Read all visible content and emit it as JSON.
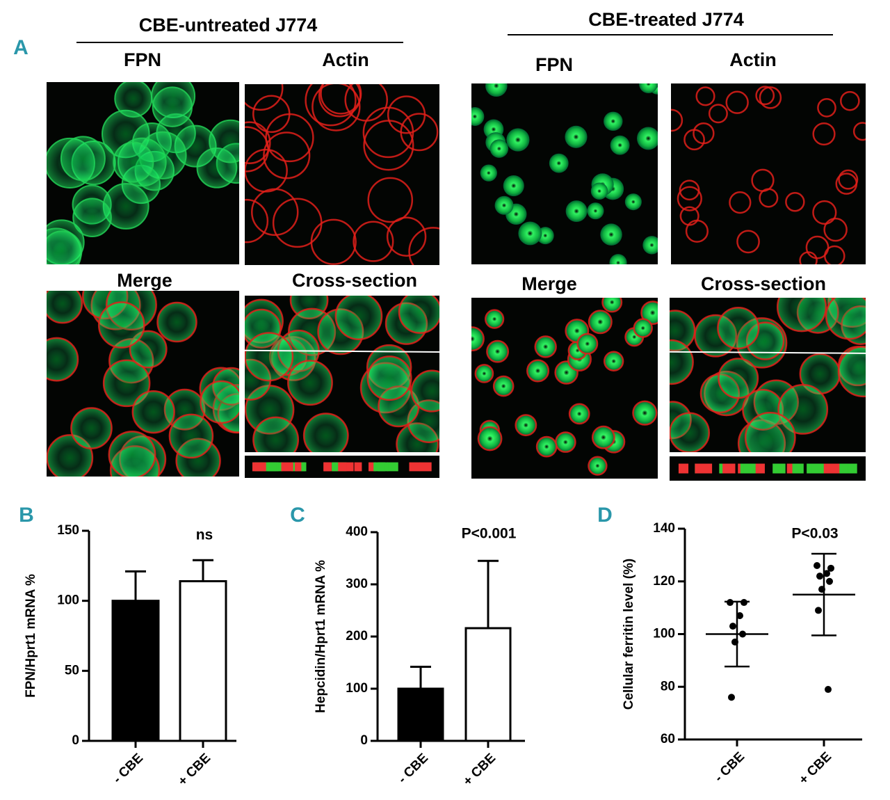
{
  "figure": {
    "panel_a": {
      "label": "A",
      "groups": [
        {
          "title": "CBE-untreated J774",
          "images": [
            "FPN",
            "Actin",
            "Merge",
            "Cross-section"
          ]
        },
        {
          "title": "CBE-treated J774",
          "images": [
            "FPN",
            "Actin",
            "Merge",
            "Cross-section"
          ]
        }
      ]
    }
  },
  "chart_data": [
    {
      "type": "bar",
      "label": "B",
      "ylabel": "FPN/Hprt1 mRNA %",
      "annotation": "ns",
      "categories": [
        "- CBE",
        "+ CBE"
      ],
      "values": [
        100,
        114
      ],
      "errors": [
        21,
        15
      ],
      "colors": [
        "#000000",
        "#ffffff"
      ],
      "ylim": [
        0,
        150
      ],
      "yticks": [
        0,
        50,
        100,
        150
      ]
    },
    {
      "type": "bar",
      "label": "C",
      "ylabel": "Hepcidin/Hprt1 mRNA %",
      "annotation": "P<0.001",
      "categories": [
        "- CBE",
        "+ CBE"
      ],
      "values": [
        100,
        216
      ],
      "errors": [
        42,
        129
      ],
      "colors": [
        "#000000",
        "#ffffff"
      ],
      "ylim": [
        0,
        400
      ],
      "yticks": [
        0,
        100,
        200,
        300,
        400
      ]
    },
    {
      "type": "strip",
      "label": "D",
      "ylabel": "Cellular ferritin level (%)",
      "annotation": "P<0.03",
      "categories": [
        "- CBE",
        "+ CBE"
      ],
      "groups": [
        {
          "values": [
            112,
            112,
            107,
            103,
            100,
            97,
            76
          ]
        },
        {
          "values": [
            126,
            125,
            123,
            122,
            120,
            117,
            109,
            79
          ]
        }
      ],
      "means": [
        100,
        115
      ],
      "sds": [
        12.3,
        15.5
      ],
      "color": "#000000",
      "ylim": [
        60,
        140
      ],
      "yticks": [
        60,
        80,
        100,
        120,
        140
      ]
    }
  ]
}
